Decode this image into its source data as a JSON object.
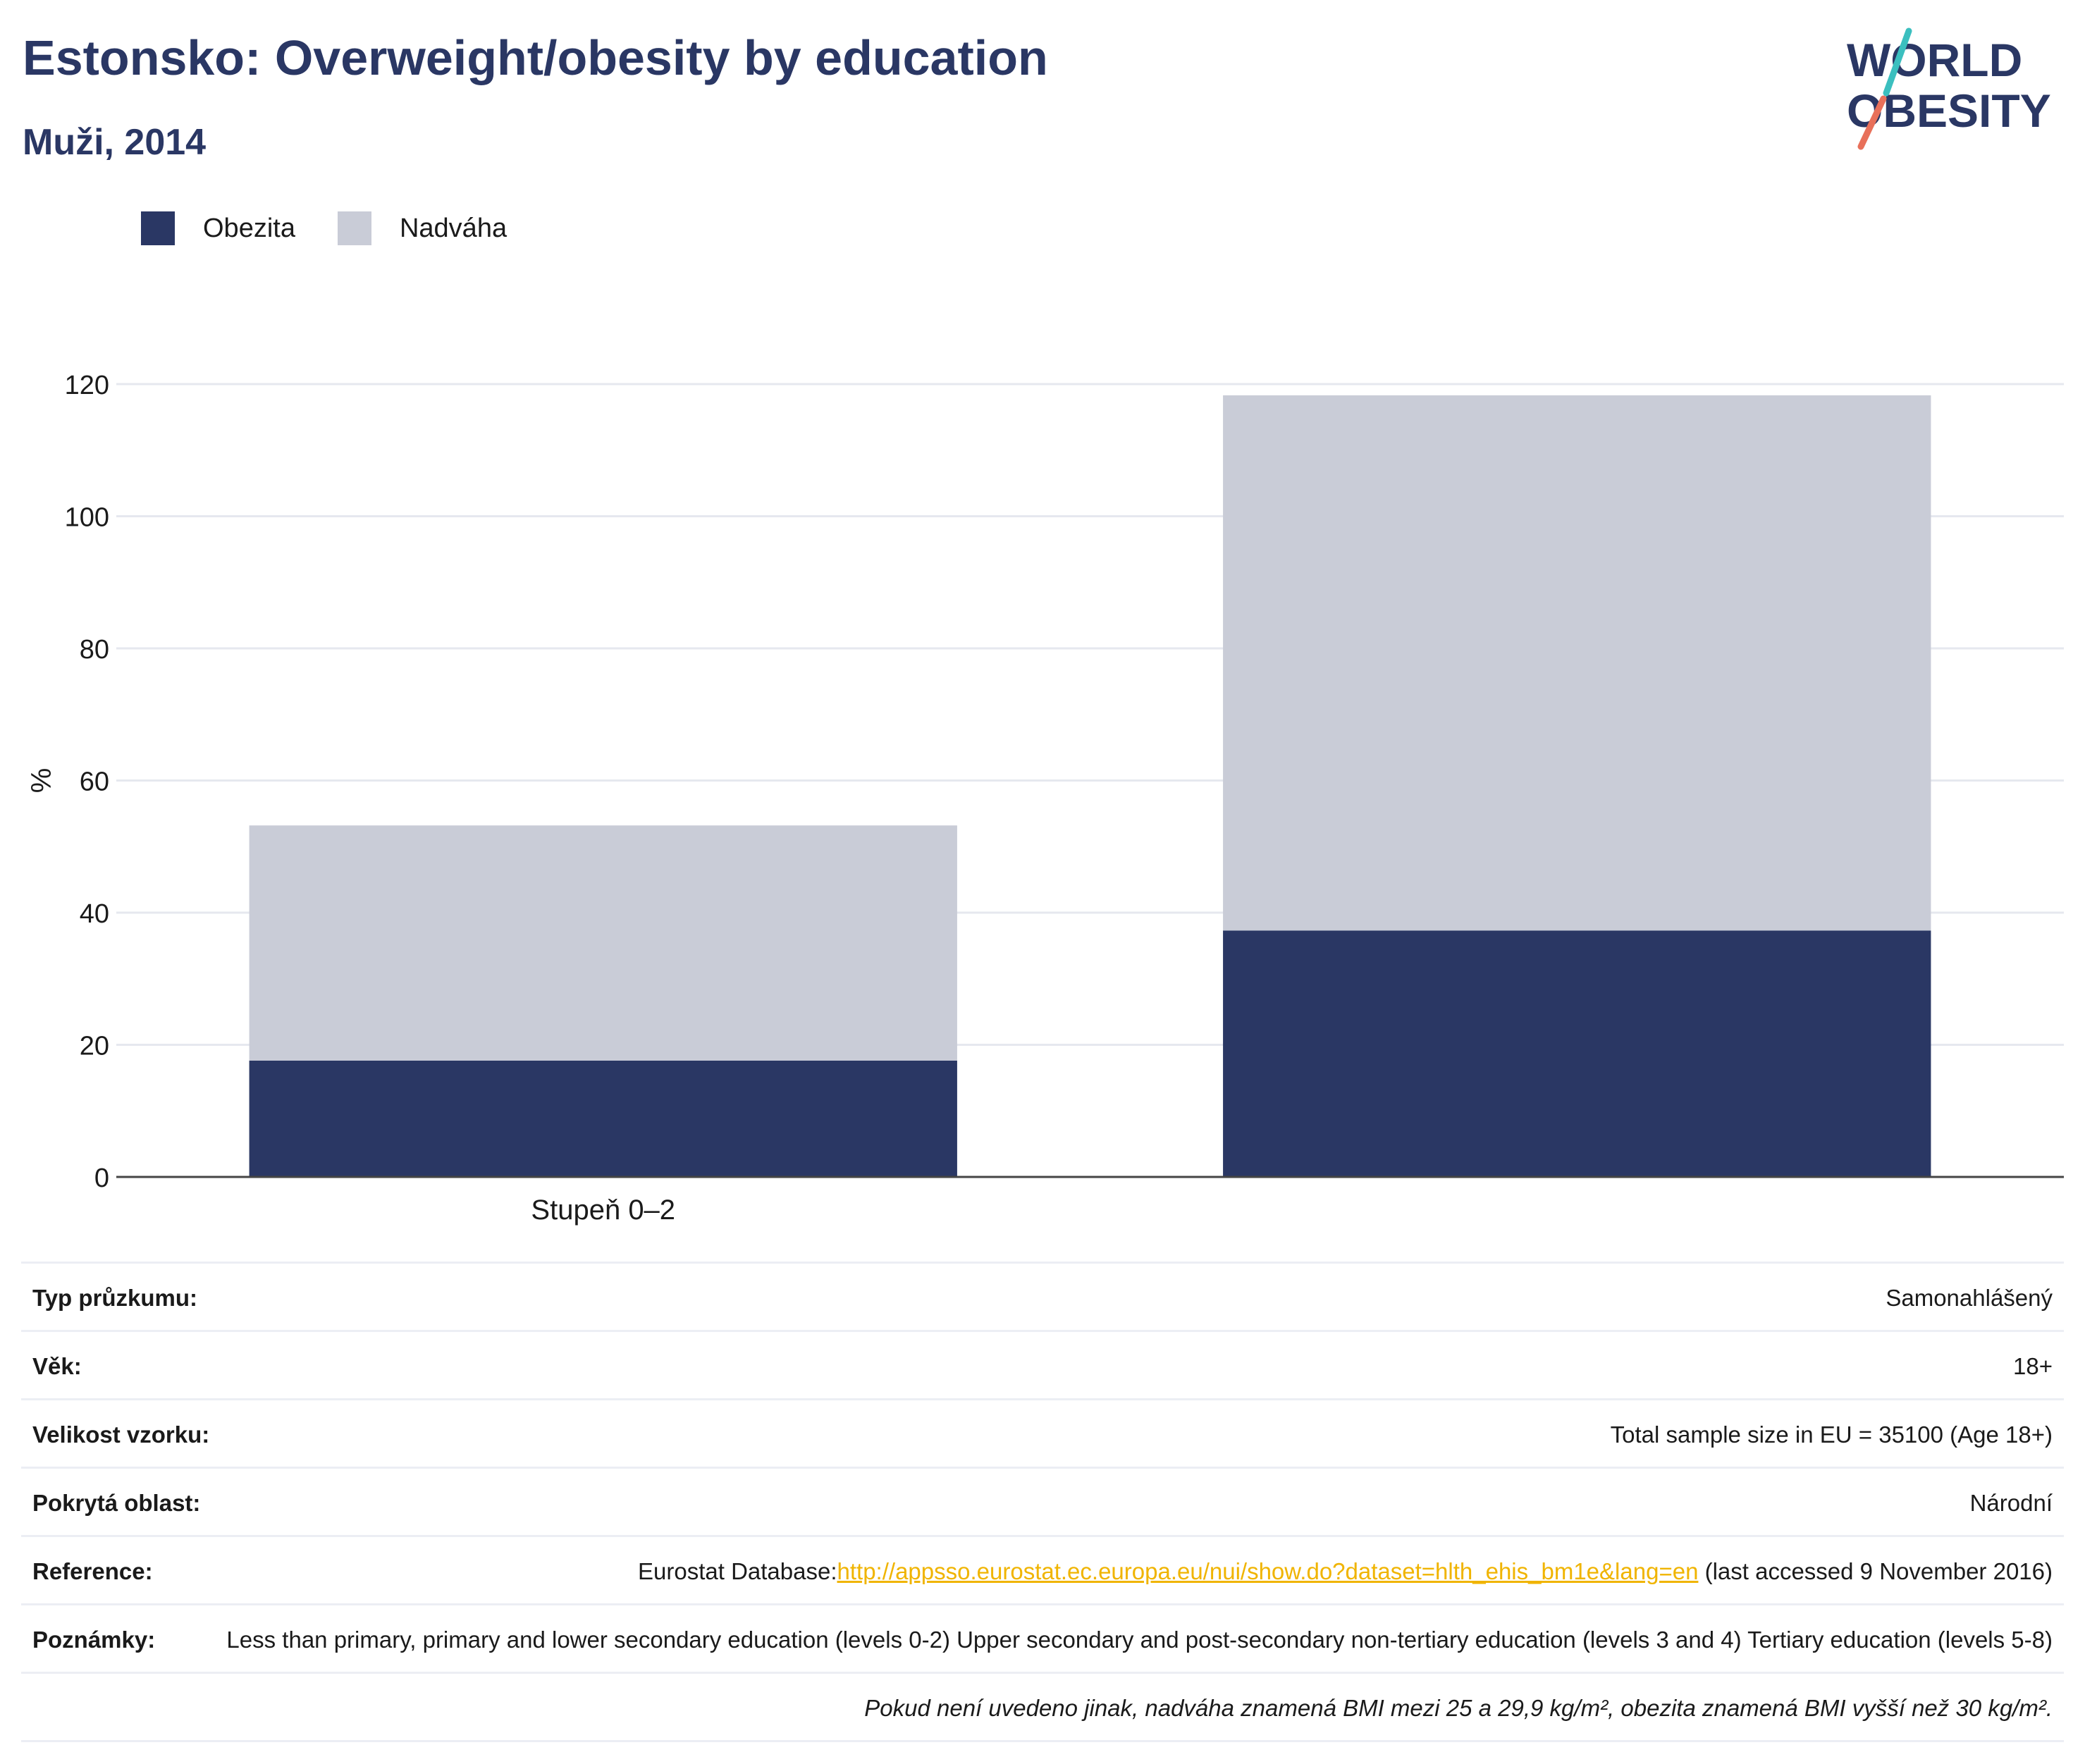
{
  "header": {
    "title": "Estonsko: Overweight/obesity by education",
    "subtitle": "Muži, 2014"
  },
  "logo": {
    "line1": "WORLD",
    "line2": "OBESITY"
  },
  "colors": {
    "obesity": "#2a3764",
    "overweight": "#c9ccd7",
    "title": "#2a3764",
    "link": "#f0b400"
  },
  "chart_data": {
    "type": "bar",
    "stacked": true,
    "categories": [
      "Stupeň 0–2",
      ""
    ],
    "series": [
      {
        "name": "Obezita",
        "values": [
          17.6,
          37.3
        ]
      },
      {
        "name": "Nadváha",
        "values": [
          35.6,
          81.0
        ]
      }
    ],
    "ylabel": "%",
    "ylim": [
      0,
      120
    ],
    "yticks": [
      0,
      20,
      40,
      60,
      80,
      100,
      120
    ],
    "grid": true,
    "legend": "top-left"
  },
  "info": {
    "rows": [
      {
        "label": "Typ průzkumu:",
        "value": "Samonahlášený"
      },
      {
        "label": "Věk:",
        "value": "18+"
      },
      {
        "label": "Velikost vzorku:",
        "value": "Total sample size in EU = 35100 (Age 18+)"
      },
      {
        "label": "Pokrytá oblast:",
        "value": "Národní"
      }
    ],
    "reference": {
      "label": "Reference:",
      "prefix": "Eurostat Database:",
      "link": "http://appsso.eurostat.ec.europa.eu/nui/show.do?dataset=hlth_ehis_bm1e&lang=en",
      "suffix": " (last accessed 9 November 2016)"
    },
    "notes": {
      "label": "Poznámky:",
      "value": "Less than primary, primary and lower secondary education (levels 0-2) Upper secondary and post-secondary non-tertiary education (levels 3 and 4) Tertiary education (levels 5-8)"
    },
    "footnote": "Pokud není uvedeno jinak, nadváha znamená BMI mezi 25 a 29,9 kg/m², obezita znamená BMI vyšší než 30 kg/m²."
  }
}
